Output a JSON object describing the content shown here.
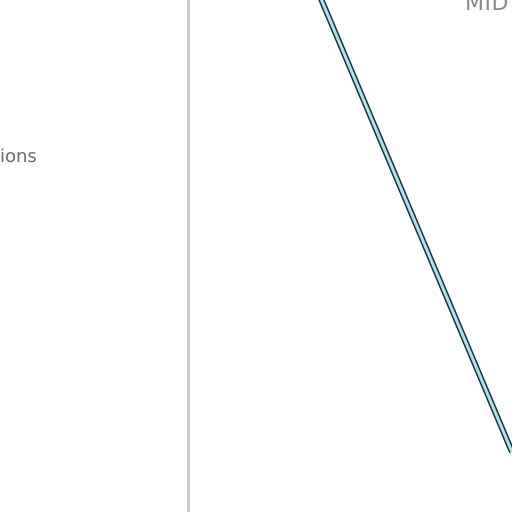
{
  "sidebar": {
    "partial_label": "ions"
  },
  "map": {
    "partial_label": "MID",
    "route_fill_color": "#a8e4f2",
    "route_outline_color": "#1f2d33",
    "divider_color": "#cccccc"
  }
}
